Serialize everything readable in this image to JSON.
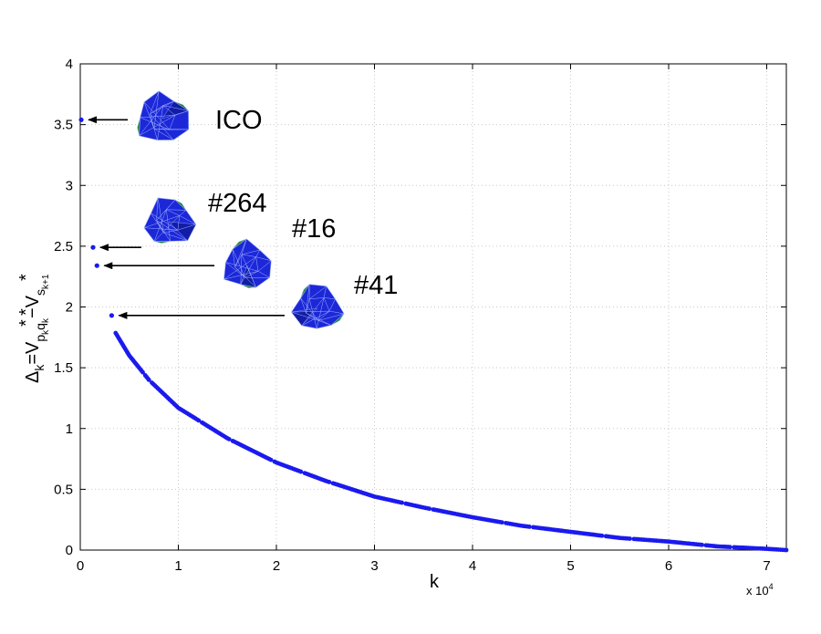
{
  "chart_data": {
    "type": "scatter",
    "xlabel": "k",
    "ylabel": {
      "main": "Δ",
      "k1": "k",
      "eq": "=V",
      "p": "p",
      "k2": "k",
      "q": "q",
      "k3": "k",
      "minus": "−V",
      "s": "s",
      "k4": "k+1",
      "star": "*"
    },
    "x_multiplier": "x 10",
    "x_multiplier_exp": "4",
    "xlim": [
      0,
      7.2
    ],
    "ylim": [
      0,
      4
    ],
    "xticks": [
      "0",
      "1",
      "2",
      "3",
      "4",
      "5",
      "6",
      "7"
    ],
    "yticks": [
      "0",
      "0.5",
      "1",
      "1.5",
      "2",
      "2.5",
      "3",
      "3.5",
      "4"
    ],
    "grid": true,
    "marker_color": "#1a1aee",
    "outlier_points": [
      {
        "x": 0.01,
        "y": 3.54
      },
      {
        "x": 0.13,
        "y": 2.49
      },
      {
        "x": 0.17,
        "y": 2.34
      },
      {
        "x": 0.32,
        "y": 1.93
      }
    ],
    "curve_points": [
      {
        "x": 0.35,
        "y": 1.8
      },
      {
        "x": 0.5,
        "y": 1.6
      },
      {
        "x": 0.7,
        "y": 1.4
      },
      {
        "x": 1.0,
        "y": 1.17
      },
      {
        "x": 1.5,
        "y": 0.92
      },
      {
        "x": 2.0,
        "y": 0.72
      },
      {
        "x": 2.5,
        "y": 0.57
      },
      {
        "x": 3.0,
        "y": 0.44
      },
      {
        "x": 3.5,
        "y": 0.35
      },
      {
        "x": 4.0,
        "y": 0.27
      },
      {
        "x": 4.5,
        "y": 0.2
      },
      {
        "x": 5.0,
        "y": 0.15
      },
      {
        "x": 5.5,
        "y": 0.1
      },
      {
        "x": 6.0,
        "y": 0.07
      },
      {
        "x": 6.5,
        "y": 0.03
      },
      {
        "x": 7.0,
        "y": 0.01
      },
      {
        "x": 7.2,
        "y": 0.0
      }
    ],
    "annotations": [
      {
        "label": "ICO",
        "point_index": 0
      },
      {
        "label": "#264",
        "point_index": 1
      },
      {
        "label": "#16",
        "point_index": 2
      },
      {
        "label": "#41",
        "point_index": 3
      }
    ],
    "polyhedron_colors": {
      "face": "#1c28d8",
      "face_dark": "#101a9a",
      "accent": "#1f8a2a",
      "edge": "#9fb0ff"
    }
  }
}
